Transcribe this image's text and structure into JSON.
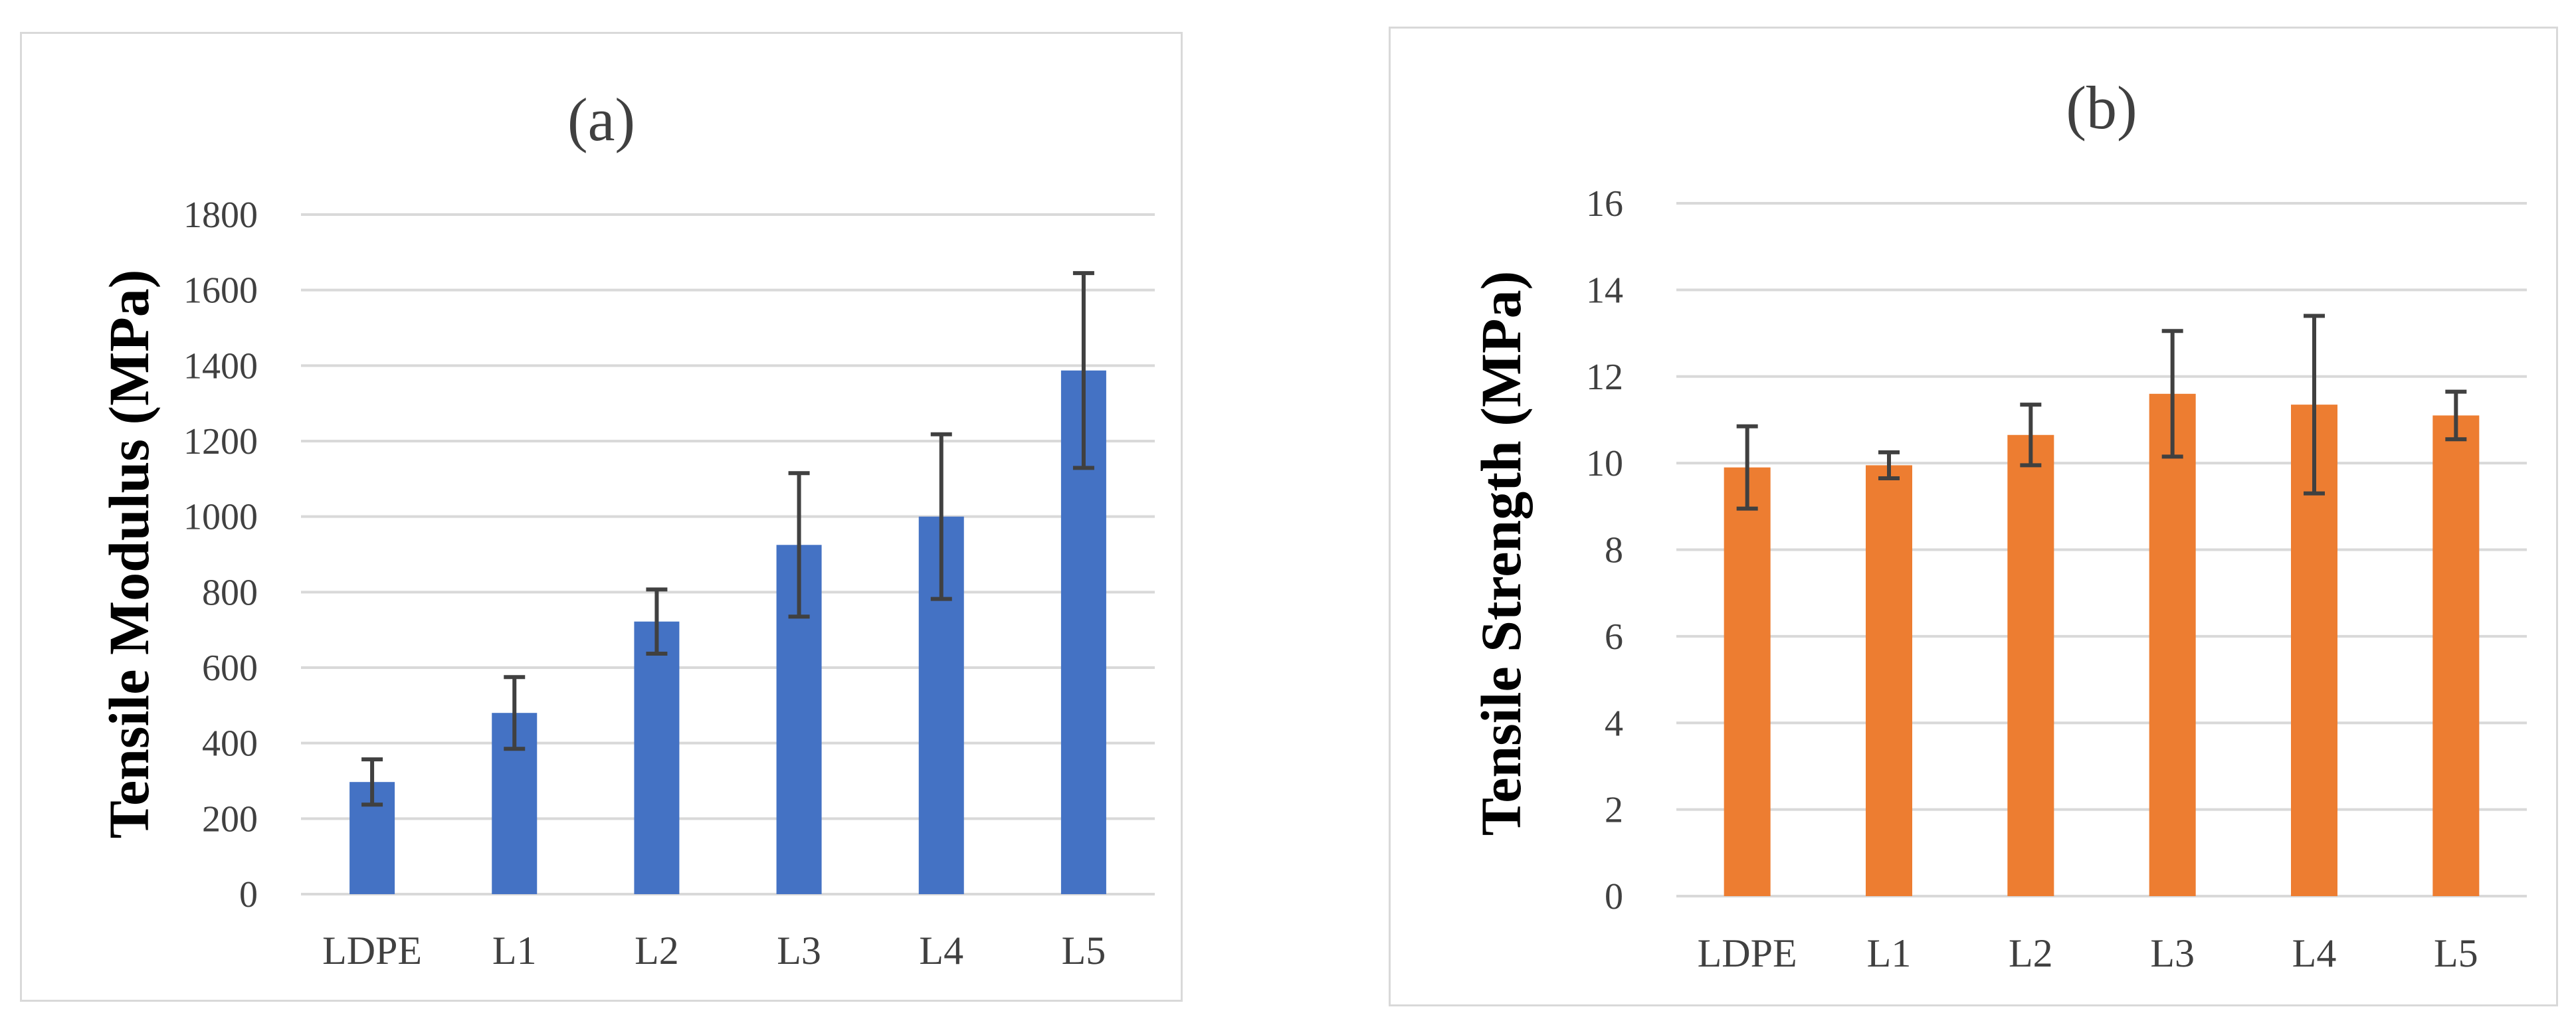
{
  "chart_data": [
    {
      "type": "bar",
      "title": "(a)",
      "xlabel": "",
      "ylabel": "Tensile Modulus (MPa)",
      "categories": [
        "LDPE",
        "L1",
        "L2",
        "L3",
        "L4",
        "L5"
      ],
      "values": [
        297,
        480,
        722,
        925,
        1000,
        1387
      ],
      "error": [
        60,
        95,
        85,
        190,
        218,
        258
      ],
      "ylim": [
        0,
        1800
      ],
      "yticks": [
        0,
        200,
        400,
        600,
        800,
        1000,
        1200,
        1400,
        1600,
        1800
      ],
      "grid": true,
      "color": "#4472c4"
    },
    {
      "type": "bar",
      "title": "(b)",
      "xlabel": "",
      "ylabel": "Tensile Strength (MPa)",
      "categories": [
        "LDPE",
        "L1",
        "L2",
        "L3",
        "L4",
        "L5"
      ],
      "values": [
        9.9,
        9.95,
        10.65,
        11.6,
        11.35,
        11.1
      ],
      "error": [
        0.95,
        0.3,
        0.7,
        1.45,
        2.05,
        0.55
      ],
      "ylim": [
        0,
        16
      ],
      "yticks": [
        0,
        2,
        4,
        6,
        8,
        10,
        12,
        14,
        16
      ],
      "grid": true,
      "color": "#ed7d31"
    }
  ]
}
